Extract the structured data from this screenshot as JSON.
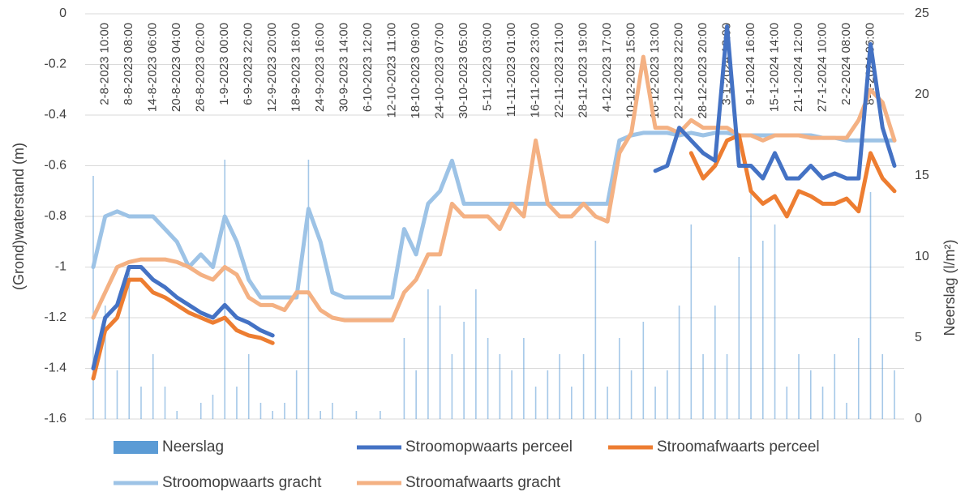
{
  "chart_data": {
    "type": "line",
    "y_label": "(Grond)waterstand (m)",
    "y2_label": "Neerslag (l/m²)",
    "ylim": [
      -1.6,
      0
    ],
    "yticks": [
      0,
      -0.2,
      -0.4,
      -0.6,
      -0.8,
      -1,
      -1.2,
      -1.4,
      -1.6
    ],
    "y2lim": [
      0,
      25
    ],
    "y2ticks": [
      0,
      5,
      10,
      15,
      20,
      25
    ],
    "grid": true,
    "legend": "bottom",
    "categories": [
      null,
      "2-8-2023 10:00",
      null,
      "8-8-2023 08:00",
      null,
      "14-8-2023 06:00",
      null,
      "20-8-2023 04:00",
      null,
      "26-8-2023 02:00",
      null,
      "1-9-2023 00:00",
      null,
      "6-9-2023 22:00",
      null,
      "12-9-2023 20:00",
      null,
      "18-9-2023 18:00",
      null,
      "24-9-2023 16:00",
      null,
      "30-9-2023 14:00",
      null,
      "6-10-2023 12:00",
      null,
      "12-10-2023 11:00",
      null,
      "18-10-2023 09:00",
      null,
      "24-10-2023 07:00",
      null,
      "30-10-2023 05:00",
      null,
      "5-11-2023 03:00",
      null,
      "11-11-2023 01:00",
      null,
      "16-11-2023 23:00",
      null,
      "22-11-2023 21:00",
      null,
      "28-11-2023 19:00",
      null,
      "4-12-2023 17:00",
      null,
      "10-12-2023 15:00",
      null,
      "16-12-2023 13:00",
      null,
      "22-12-2023 22:00",
      null,
      "28-12-2023 20:00",
      null,
      "3-1-2024 18:00",
      null,
      "9-1-2024 16:00",
      null,
      "15-1-2024 14:00",
      null,
      "21-1-2024 12:00",
      null,
      "27-1-2024 10:00",
      null,
      "2-2-2024 08:00",
      null,
      "8-2-2024 06:00",
      null,
      null
    ],
    "series": [
      {
        "name": "Neerslag",
        "type": "bar",
        "axis": "y2",
        "color": "#5b9bd5",
        "values": [
          15,
          7,
          3,
          9,
          2,
          4,
          2,
          0.5,
          0,
          1,
          1.5,
          16,
          2,
          4,
          1,
          0.5,
          1,
          3,
          16,
          0.5,
          1,
          0,
          0.5,
          0,
          0.5,
          0,
          5,
          3,
          8,
          7,
          4,
          6,
          8,
          5,
          4,
          3,
          5,
          2,
          3,
          4,
          2,
          4,
          11,
          2,
          5,
          3,
          6,
          2,
          3,
          7,
          12,
          4,
          7,
          4,
          10,
          14,
          11,
          12,
          2,
          4,
          3,
          2,
          4,
          1,
          5,
          14,
          4,
          3
        ]
      },
      {
        "name": "Stroomopwaarts perceel",
        "color": "#4472c4",
        "values": [
          -1.4,
          -1.2,
          -1.15,
          -1.0,
          -1.0,
          -1.05,
          -1.08,
          -1.12,
          -1.15,
          -1.18,
          -1.2,
          -1.15,
          -1.2,
          -1.22,
          -1.25,
          -1.27,
          null,
          null,
          null,
          null,
          null,
          null,
          null,
          null,
          null,
          null,
          null,
          null,
          null,
          null,
          null,
          null,
          null,
          null,
          null,
          null,
          null,
          null,
          null,
          null,
          null,
          null,
          null,
          null,
          null,
          null,
          null,
          -0.62,
          -0.6,
          -0.45,
          -0.5,
          -0.55,
          -0.58,
          -0.05,
          -0.6,
          -0.6,
          -0.65,
          -0.55,
          -0.65,
          -0.65,
          -0.6,
          -0.65,
          -0.63,
          -0.65,
          -0.65,
          -0.12,
          -0.45,
          -0.6
        ]
      },
      {
        "name": "Stroomafwaarts perceel",
        "color": "#ed7d31",
        "values": [
          -1.44,
          -1.25,
          -1.2,
          -1.05,
          -1.05,
          -1.1,
          -1.12,
          -1.15,
          -1.18,
          -1.2,
          -1.22,
          -1.2,
          -1.25,
          -1.27,
          -1.28,
          -1.3,
          null,
          null,
          null,
          null,
          null,
          null,
          null,
          null,
          null,
          null,
          null,
          null,
          null,
          null,
          null,
          null,
          null,
          null,
          null,
          null,
          null,
          null,
          null,
          null,
          null,
          null,
          null,
          null,
          null,
          null,
          null,
          null,
          null,
          null,
          -0.55,
          -0.65,
          -0.6,
          -0.5,
          -0.48,
          -0.7,
          -0.75,
          -0.72,
          -0.8,
          -0.7,
          -0.72,
          -0.75,
          -0.75,
          -0.73,
          -0.78,
          -0.55,
          -0.65,
          -0.7
        ]
      },
      {
        "name": "Stroomopwaarts gracht",
        "color": "#9dc3e6",
        "values": [
          -1.0,
          -0.8,
          -0.78,
          -0.8,
          -0.8,
          -0.8,
          -0.85,
          -0.9,
          -1.0,
          -0.95,
          -1.0,
          -0.8,
          -0.9,
          -1.05,
          -1.12,
          -1.12,
          -1.12,
          -1.12,
          -0.77,
          -0.9,
          -1.1,
          -1.12,
          -1.12,
          -1.12,
          -1.12,
          -1.12,
          -0.85,
          -0.95,
          -0.75,
          -0.7,
          -0.58,
          -0.75,
          -0.75,
          -0.75,
          -0.75,
          -0.75,
          -0.75,
          -0.75,
          -0.75,
          -0.75,
          -0.75,
          -0.75,
          -0.75,
          -0.75,
          -0.5,
          -0.48,
          -0.47,
          -0.47,
          -0.47,
          -0.48,
          -0.47,
          -0.48,
          -0.47,
          -0.47,
          -0.48,
          -0.48,
          -0.48,
          -0.48,
          -0.48,
          -0.48,
          -0.48,
          -0.49,
          -0.49,
          -0.5,
          -0.5,
          -0.5,
          -0.5,
          -0.5
        ]
      },
      {
        "name": "Stroomafwaarts gracht",
        "color": "#f4b183",
        "values": [
          -1.2,
          -1.1,
          -1.0,
          -0.98,
          -0.97,
          -0.97,
          -0.97,
          -0.98,
          -1.0,
          -1.03,
          -1.05,
          -1.0,
          -1.03,
          -1.12,
          -1.15,
          -1.15,
          -1.17,
          -1.1,
          -1.1,
          -1.17,
          -1.2,
          -1.21,
          -1.21,
          -1.21,
          -1.21,
          -1.21,
          -1.1,
          -1.05,
          -0.95,
          -0.95,
          -0.75,
          -0.8,
          -0.8,
          -0.8,
          -0.85,
          -0.75,
          -0.8,
          -0.5,
          -0.75,
          -0.8,
          -0.8,
          -0.75,
          -0.8,
          -0.82,
          -0.55,
          -0.47,
          -0.17,
          -0.45,
          -0.45,
          -0.47,
          -0.42,
          -0.45,
          -0.45,
          -0.45,
          -0.48,
          -0.48,
          -0.5,
          -0.48,
          -0.48,
          -0.48,
          -0.49,
          -0.49,
          -0.49,
          -0.49,
          -0.42,
          -0.3,
          -0.35,
          -0.5
        ]
      }
    ]
  }
}
